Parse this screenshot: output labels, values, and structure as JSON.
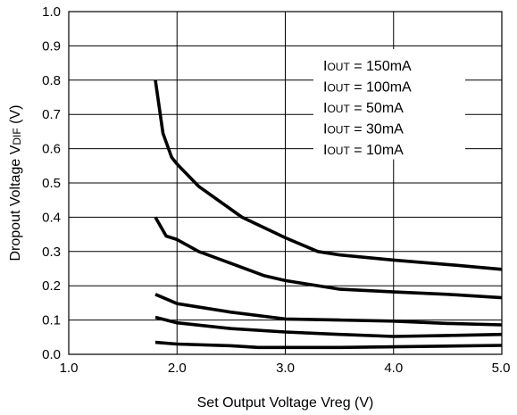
{
  "chart_data": {
    "type": "line",
    "title": "",
    "xlabel": "Set Output Voltage Vreg (V)",
    "ylabel": {
      "main": "Dropout Voltage V",
      "sub": "DIF",
      "unit": " (V)"
    },
    "xlim": [
      1.0,
      5.0
    ],
    "ylim": [
      0.0,
      1.0
    ],
    "x_ticks": [
      "1.0",
      "2.0",
      "3.0",
      "4.0",
      "5.0"
    ],
    "y_ticks": [
      "0.0",
      "0.1",
      "0.2",
      "0.3",
      "0.4",
      "0.5",
      "0.6",
      "0.7",
      "0.8",
      "0.9",
      "1.0"
    ],
    "grid": true,
    "series": [
      {
        "name": "IOUT = 150mA",
        "label": {
          "pre": "I",
          "sub": "OUT",
          "post": " = 150mA"
        },
        "x": [
          1.8,
          1.87,
          1.95,
          2.0,
          2.2,
          2.4,
          2.6,
          2.8,
          3.0,
          3.3,
          3.5,
          4.0,
          4.5,
          5.0
        ],
        "y": [
          0.8,
          0.645,
          0.575,
          0.555,
          0.49,
          0.445,
          0.4,
          0.37,
          0.34,
          0.3,
          0.29,
          0.275,
          0.262,
          0.248
        ]
      },
      {
        "name": "IOUT = 100mA",
        "label": {
          "pre": "I",
          "sub": "OUT",
          "post": " = 100mA"
        },
        "x": [
          1.8,
          1.9,
          2.0,
          2.2,
          2.5,
          2.8,
          3.0,
          3.5,
          4.0,
          4.5,
          5.0
        ],
        "y": [
          0.4,
          0.345,
          0.335,
          0.3,
          0.265,
          0.23,
          0.215,
          0.19,
          0.182,
          0.175,
          0.165
        ]
      },
      {
        "name": "IOUT = 50mA",
        "label": {
          "pre": "I",
          "sub": "OUT",
          "post": " = 50mA"
        },
        "x": [
          1.8,
          2.0,
          2.5,
          3.0,
          3.5,
          4.0,
          4.5,
          5.0
        ],
        "y": [
          0.175,
          0.148,
          0.123,
          0.103,
          0.1,
          0.097,
          0.09,
          0.086
        ]
      },
      {
        "name": "IOUT = 30mA",
        "label": {
          "pre": "I",
          "sub": "OUT",
          "post": " = 30mA"
        },
        "x": [
          1.8,
          2.0,
          2.5,
          3.0,
          3.5,
          4.0,
          4.5,
          5.0
        ],
        "y": [
          0.108,
          0.092,
          0.075,
          0.065,
          0.058,
          0.052,
          0.055,
          0.058
        ]
      },
      {
        "name": "IOUT = 10mA",
        "label": {
          "pre": "I",
          "sub": "OUT",
          "post": " = 10mA"
        },
        "x": [
          1.8,
          2.0,
          2.5,
          2.75,
          3.0,
          3.5,
          4.0,
          4.5,
          5.0
        ],
        "y": [
          0.035,
          0.03,
          0.025,
          0.02,
          0.02,
          0.02,
          0.022,
          0.024,
          0.026
        ]
      }
    ],
    "legend_position": "top-right",
    "line_color": "#000000",
    "line_width_style": "thick black curves"
  }
}
